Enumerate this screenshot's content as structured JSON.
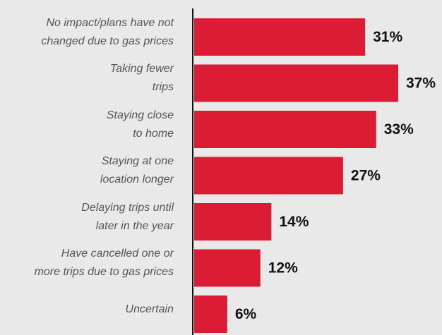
{
  "chart_data": {
    "type": "bar",
    "orientation": "horizontal",
    "categories": [
      "No impact/plans have not\nchanged due to gas prices",
      "Taking fewer\ntrips",
      "Staying close\nto home",
      "Staying at one\nlocation longer",
      "Delaying trips until\nlater in the year",
      "Have cancelled one or\nmore trips due to gas prices",
      "Uncertain"
    ],
    "values": [
      31,
      37,
      33,
      27,
      14,
      12,
      6
    ],
    "value_labels": [
      "31%",
      "37%",
      "33%",
      "27%",
      "14%",
      "12%",
      "6%"
    ],
    "color": "#dc1c35"
  }
}
